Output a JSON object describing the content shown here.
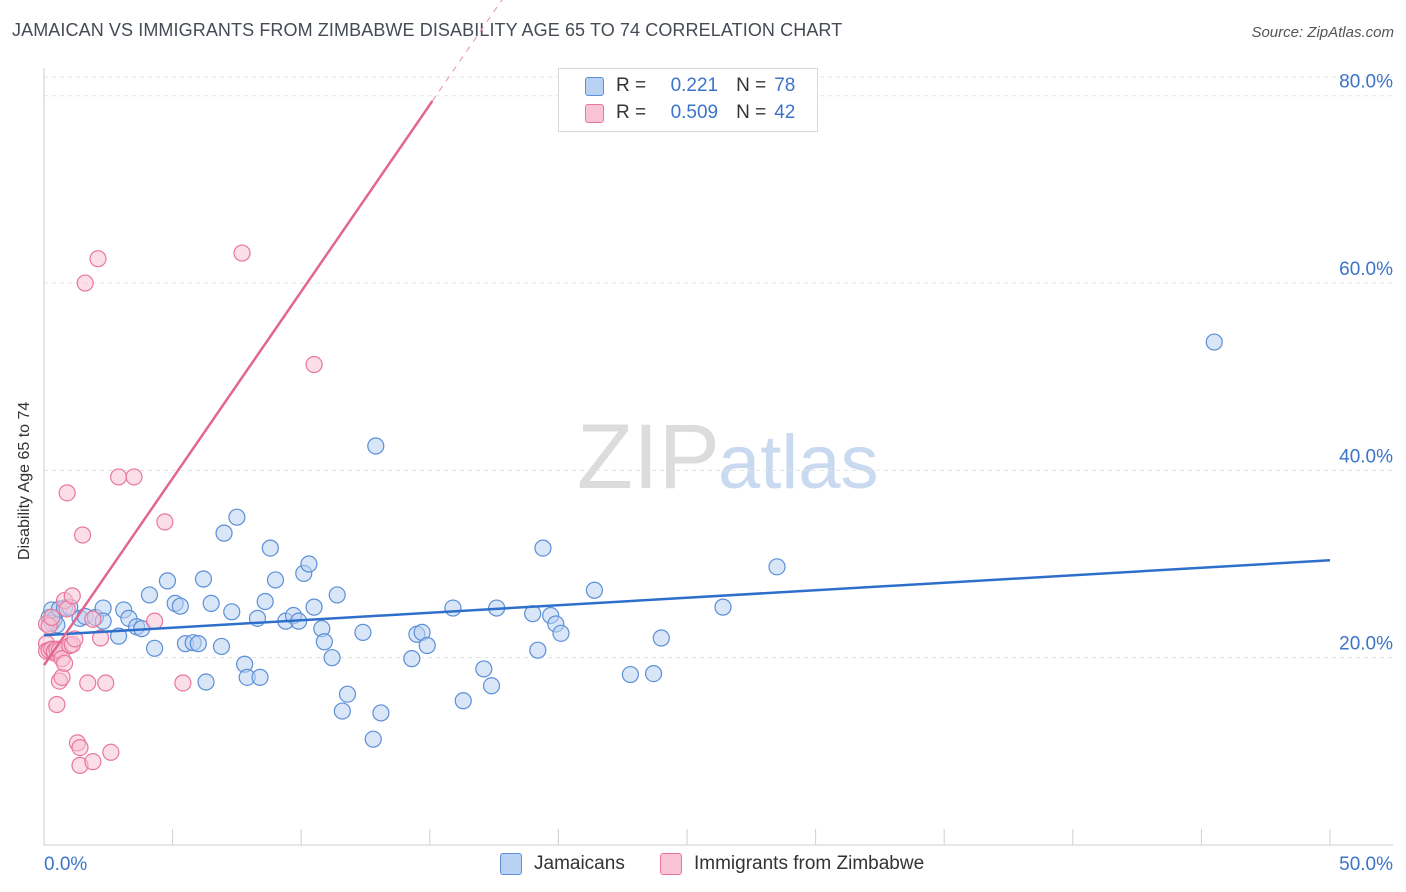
{
  "header": {
    "title": "JAMAICAN VS IMMIGRANTS FROM ZIMBABWE DISABILITY AGE 65 TO 74 CORRELATION CHART",
    "source": "Source: ZipAtlas.com"
  },
  "watermark": {
    "zip": "ZIP",
    "atlas": "atlas"
  },
  "legend": {
    "r_label": "R =",
    "n_label": "N =",
    "rows": [
      {
        "r": "0.221",
        "n": "78",
        "color": "#5b8fd6",
        "fill": "#b9d1f2"
      },
      {
        "r": "0.509",
        "n": "42",
        "color": "#e8779c",
        "fill": "#f7c3d5"
      }
    ]
  },
  "chart_data": {
    "type": "scatter",
    "title": "JAMAICAN VS IMMIGRANTS FROM ZIMBABWE DISABILITY AGE 65 TO 74 CORRELATION CHART",
    "xlabel": "",
    "ylabel": "Disability Age 65 to 74",
    "xlim": [
      0,
      50
    ],
    "ylim": [
      0,
      82
    ],
    "x_tick_labels": [
      "0.0%",
      "50.0%"
    ],
    "y_ticks": [
      20,
      40,
      60,
      80
    ],
    "y_tick_labels": [
      "20.0%",
      "40.0%",
      "60.0%",
      "80.0%"
    ],
    "series": [
      {
        "name": "Jamaicans",
        "color": "#5b8fd6",
        "fill": "#b9d1f2",
        "trend": {
          "x0": 0,
          "y0": 22.4,
          "x1": 50,
          "y1": 30.4,
          "dash_after": null
        },
        "points": [
          [
            0.2,
            24.3
          ],
          [
            0.3,
            25.1
          ],
          [
            0.3,
            23.7
          ],
          [
            0.4,
            24.1
          ],
          [
            0.5,
            23.5
          ],
          [
            0.6,
            25.2
          ],
          [
            0.8,
            25.3
          ],
          [
            1.0,
            25.4
          ],
          [
            1.4,
            24.2
          ],
          [
            1.6,
            24.4
          ],
          [
            2.0,
            24.3
          ],
          [
            2.3,
            25.3
          ],
          [
            2.3,
            23.9
          ],
          [
            2.9,
            22.3
          ],
          [
            3.1,
            25.1
          ],
          [
            3.3,
            24.2
          ],
          [
            3.6,
            23.3
          ],
          [
            3.8,
            23.1
          ],
          [
            4.1,
            26.7
          ],
          [
            4.3,
            21.0
          ],
          [
            4.8,
            28.2
          ],
          [
            5.1,
            25.8
          ],
          [
            5.3,
            25.5
          ],
          [
            5.5,
            21.5
          ],
          [
            5.8,
            21.6
          ],
          [
            6.0,
            21.5
          ],
          [
            6.2,
            28.4
          ],
          [
            6.3,
            17.4
          ],
          [
            6.5,
            25.8
          ],
          [
            6.9,
            21.2
          ],
          [
            7.0,
            33.3
          ],
          [
            7.3,
            24.9
          ],
          [
            7.5,
            35.0
          ],
          [
            7.8,
            19.3
          ],
          [
            7.9,
            17.9
          ],
          [
            8.3,
            24.2
          ],
          [
            8.4,
            17.9
          ],
          [
            8.6,
            26.0
          ],
          [
            8.8,
            31.7
          ],
          [
            9.0,
            28.3
          ],
          [
            9.4,
            23.9
          ],
          [
            9.7,
            24.5
          ],
          [
            9.9,
            23.9
          ],
          [
            10.1,
            29.0
          ],
          [
            10.3,
            30.0
          ],
          [
            10.5,
            25.4
          ],
          [
            10.8,
            23.1
          ],
          [
            10.9,
            21.7
          ],
          [
            11.2,
            20.0
          ],
          [
            11.4,
            26.7
          ],
          [
            11.6,
            14.3
          ],
          [
            11.8,
            16.1
          ],
          [
            12.4,
            22.7
          ],
          [
            12.8,
            11.3
          ],
          [
            12.9,
            42.6
          ],
          [
            13.1,
            14.1
          ],
          [
            14.3,
            19.9
          ],
          [
            14.5,
            22.5
          ],
          [
            14.7,
            22.7
          ],
          [
            14.9,
            21.3
          ],
          [
            15.9,
            25.3
          ],
          [
            16.3,
            15.4
          ],
          [
            17.1,
            18.8
          ],
          [
            17.4,
            17.0
          ],
          [
            17.6,
            25.3
          ],
          [
            19.0,
            24.7
          ],
          [
            19.2,
            20.8
          ],
          [
            19.4,
            31.7
          ],
          [
            19.7,
            24.5
          ],
          [
            19.9,
            23.6
          ],
          [
            20.1,
            22.6
          ],
          [
            21.4,
            27.2
          ],
          [
            22.8,
            18.2
          ],
          [
            23.7,
            18.3
          ],
          [
            24.0,
            22.1
          ],
          [
            26.4,
            25.4
          ],
          [
            28.5,
            29.7
          ],
          [
            45.5,
            53.7
          ]
        ]
      },
      {
        "name": "Immigrants from Zimbabwe",
        "color": "#e8779c",
        "fill": "#f7c3d5",
        "trend": {
          "x0": 0,
          "y0": 19.2,
          "x1": 18.5,
          "y1": 93.0,
          "solid_until_x": 15.1
        },
        "points": [
          [
            0.1,
            23.6
          ],
          [
            0.1,
            21.5
          ],
          [
            0.1,
            20.7
          ],
          [
            0.2,
            23.4
          ],
          [
            0.2,
            20.8
          ],
          [
            0.3,
            20.9
          ],
          [
            0.3,
            24.3
          ],
          [
            0.4,
            20.5
          ],
          [
            0.4,
            20.7
          ],
          [
            0.5,
            15.0
          ],
          [
            0.5,
            20.9
          ],
          [
            0.6,
            17.5
          ],
          [
            0.6,
            20.8
          ],
          [
            0.7,
            17.9
          ],
          [
            0.7,
            19.9
          ],
          [
            0.8,
            19.4
          ],
          [
            0.8,
            26.1
          ],
          [
            0.9,
            25.2
          ],
          [
            0.9,
            37.6
          ],
          [
            1.0,
            21.3
          ],
          [
            1.1,
            26.6
          ],
          [
            1.1,
            21.4
          ],
          [
            1.2,
            22.0
          ],
          [
            1.3,
            10.9
          ],
          [
            1.4,
            10.4
          ],
          [
            1.4,
            8.5
          ],
          [
            1.5,
            33.1
          ],
          [
            1.6,
            60.0
          ],
          [
            1.7,
            17.3
          ],
          [
            1.9,
            24.1
          ],
          [
            1.9,
            8.9
          ],
          [
            2.1,
            62.6
          ],
          [
            2.2,
            22.1
          ],
          [
            2.4,
            17.3
          ],
          [
            2.6,
            9.9
          ],
          [
            2.9,
            39.3
          ],
          [
            3.5,
            39.3
          ],
          [
            4.3,
            23.9
          ],
          [
            4.7,
            34.5
          ],
          [
            5.4,
            17.3
          ],
          [
            7.7,
            63.2
          ],
          [
            10.5,
            51.3
          ]
        ]
      }
    ]
  },
  "bottom_legend": [
    {
      "label": "Jamaicans"
    },
    {
      "label": "Immigrants from Zimbabwe"
    }
  ]
}
